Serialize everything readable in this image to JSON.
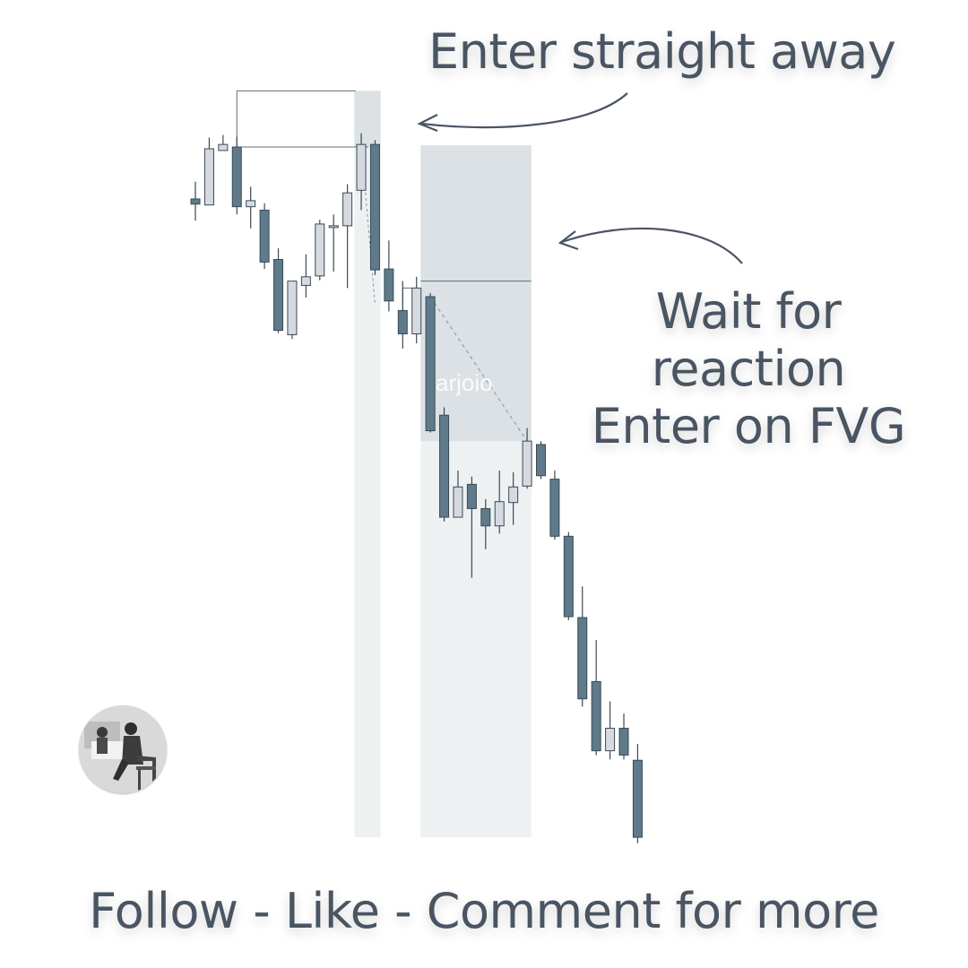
{
  "annotations": {
    "enter_straight_away": "Enter straight away",
    "wait_line1": "Wait for reaction",
    "wait_line2": "Enter on FVG",
    "footer": "Follow - Like - Comment for more",
    "watermark": "arjoio"
  },
  "colors": {
    "bearish": "#5f7a8a",
    "bullish": "#d6d9e0",
    "wick": "#3a4a55",
    "zone_light": "#eef1f2",
    "zone_dark": "#dbe1e4",
    "text": "#4a5563"
  },
  "avatar": {
    "icon": "avatar-photo-icon"
  },
  "chart_data": {
    "type": "candlestick",
    "title": "",
    "xlabel": "",
    "ylabel": "",
    "grid": false,
    "legend": "none",
    "ylim": [
      0,
      1000
    ],
    "candles": [
      {
        "x": 0,
        "open": 770,
        "close": 764,
        "high": 790,
        "low": 745
      },
      {
        "x": 1,
        "open": 763,
        "close": 828,
        "high": 841,
        "low": 763
      },
      {
        "x": 2,
        "open": 826,
        "close": 833,
        "high": 844,
        "low": 826
      },
      {
        "x": 3,
        "open": 830,
        "close": 761,
        "high": 842,
        "low": 752
      },
      {
        "x": 4,
        "open": 761,
        "close": 768,
        "high": 784,
        "low": 736
      },
      {
        "x": 5,
        "open": 757,
        "close": 697,
        "high": 765,
        "low": 689
      },
      {
        "x": 6,
        "open": 700,
        "close": 618,
        "high": 713,
        "low": 615
      },
      {
        "x": 7,
        "open": 613,
        "close": 675,
        "high": 675,
        "low": 608
      },
      {
        "x": 8,
        "open": 670,
        "close": 680,
        "high": 706,
        "low": 656
      },
      {
        "x": 9,
        "open": 681,
        "close": 741,
        "high": 746,
        "low": 676
      },
      {
        "x": 10,
        "open": 738,
        "close": 739,
        "high": 752,
        "low": 686
      },
      {
        "x": 11,
        "open": 739,
        "close": 777,
        "high": 787,
        "low": 667
      },
      {
        "x": 12,
        "open": 780,
        "close": 833,
        "high": 846,
        "low": 757
      },
      {
        "x": 13,
        "open": 833,
        "close": 688,
        "high": 838,
        "low": 682
      },
      {
        "x": 14,
        "open": 689,
        "close": 652,
        "high": 722,
        "low": 640
      },
      {
        "x": 15,
        "open": 641,
        "close": 614,
        "high": 675,
        "low": 597
      },
      {
        "x": 16,
        "open": 614,
        "close": 667,
        "high": 680,
        "low": 603
      },
      {
        "x": 17,
        "open": 657,
        "close": 502,
        "high": 661,
        "low": 500
      },
      {
        "x": 18,
        "open": 520,
        "close": 402,
        "high": 529,
        "low": 397
      },
      {
        "x": 19,
        "open": 402,
        "close": 437,
        "high": 456,
        "low": 402
      },
      {
        "x": 20,
        "open": 440,
        "close": 412,
        "high": 449,
        "low": 332
      },
      {
        "x": 21,
        "open": 412,
        "close": 392,
        "high": 423,
        "low": 365
      },
      {
        "x": 22,
        "open": 392,
        "close": 420,
        "high": 456,
        "low": 383
      },
      {
        "x": 23,
        "open": 419,
        "close": 437,
        "high": 454,
        "low": 393
      },
      {
        "x": 24,
        "open": 438,
        "close": 490,
        "high": 505,
        "low": 435
      },
      {
        "x": 25,
        "open": 486,
        "close": 450,
        "high": 490,
        "low": 446
      },
      {
        "x": 26,
        "open": 446,
        "close": 380,
        "high": 456,
        "low": 376
      },
      {
        "x": 27,
        "open": 380,
        "close": 287,
        "high": 385,
        "low": 283
      },
      {
        "x": 28,
        "open": 286,
        "close": 192,
        "high": 322,
        "low": 183
      },
      {
        "x": 29,
        "open": 212,
        "close": 132,
        "high": 260,
        "low": 127
      },
      {
        "x": 30,
        "open": 132,
        "close": 158,
        "high": 189,
        "low": 122
      },
      {
        "x": 31,
        "open": 158,
        "close": 127,
        "high": 175,
        "low": 122
      },
      {
        "x": 32,
        "open": 121,
        "close": 32,
        "high": 140,
        "low": 25
      }
    ],
    "zones": [
      {
        "name": "first-entry-zone",
        "x_start": 11.5,
        "x_end": 13.4,
        "y_low": 32,
        "y_high": 895,
        "y_dark_low": 830
      },
      {
        "name": "fvg-zone",
        "x_start": 16.3,
        "x_end": 24.3,
        "y_low": 32,
        "y_high": 832,
        "y_dark_low": 490,
        "y_line": 675
      }
    ]
  }
}
